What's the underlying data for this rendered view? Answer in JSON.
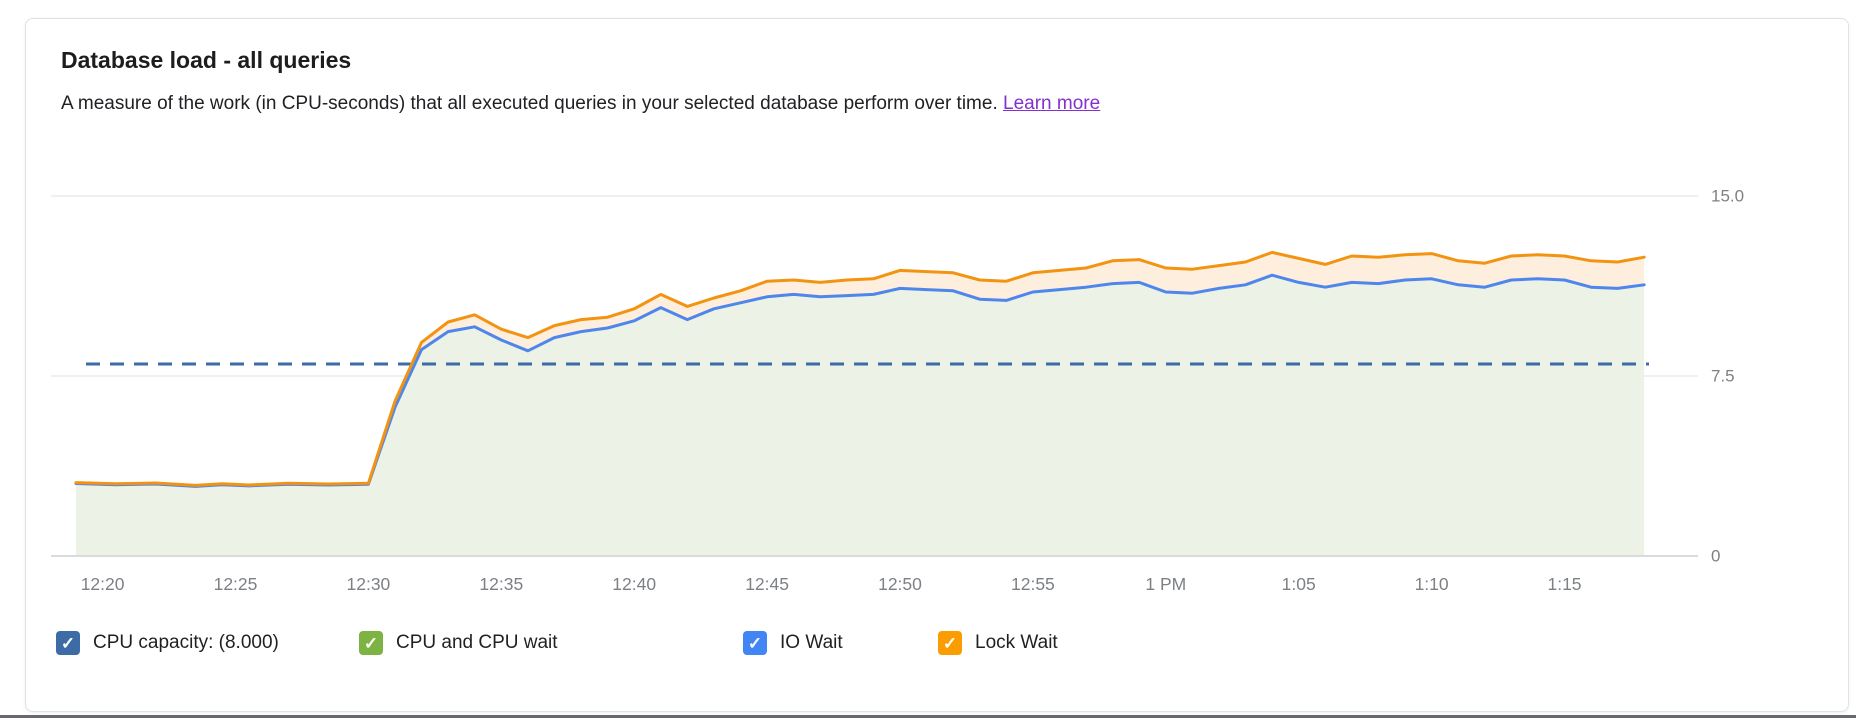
{
  "card": {
    "title": "Database load - all queries",
    "subtitle": "A measure of the work (in CPU-seconds) that all executed queries in your selected database perform over time.",
    "learn_more_label": "Learn more",
    "link_color": "#8430ce"
  },
  "chart_data": {
    "type": "area",
    "title": "Database load - all queries",
    "ylabel": "CPU-seconds",
    "ylim": [
      0,
      15
    ],
    "grid": "horizontal-only",
    "legend_position": "bottom",
    "y_ticks": [
      {
        "value": 15,
        "label": "15.0"
      },
      {
        "value": 7.5,
        "label": "7.5"
      },
      {
        "value": 0,
        "label": "0"
      }
    ],
    "x_tick_labels": [
      "12:20",
      "12:25",
      "12:30",
      "12:35",
      "12:40",
      "12:45",
      "12:50",
      "12:55",
      "1 PM",
      "1:05",
      "1:10",
      "1:15"
    ],
    "x_tick_interval_minutes": 5,
    "series_start_time": "12:19",
    "series_end_time": "1:18",
    "t_minutes": [
      0,
      1.5,
      3,
      4.5,
      5.5,
      6.5,
      8,
      9.5,
      11,
      12,
      13,
      14,
      15,
      16,
      17,
      18,
      19,
      20,
      21,
      22,
      23,
      24,
      25,
      26,
      27,
      28,
      29,
      30,
      31,
      32,
      33,
      34,
      35,
      36,
      37,
      38,
      39,
      40,
      41,
      42,
      43,
      44,
      45,
      46,
      47,
      48,
      49,
      50,
      51,
      52,
      53,
      54,
      55,
      56,
      57,
      58,
      59
    ],
    "capacity": {
      "name": "CPU capacity",
      "value": 8.0,
      "style": "dashed",
      "color": "#3d6ba5"
    },
    "series": [
      {
        "name": "CPU and CPU wait",
        "type": "stacked-area",
        "fill": "#edf2e6",
        "note": "light green band filling from 0 up to the blue IO Wait line",
        "checkbox_color": "#7cb342"
      },
      {
        "name": "IO Wait",
        "type": "line-stack-top",
        "line_color": "#4e86ec",
        "checkbox_color": "#4285f4",
        "values": [
          3.02,
          2.97,
          3.0,
          2.9,
          2.97,
          2.92,
          2.99,
          2.96,
          2.99,
          6.2,
          8.6,
          9.35,
          9.55,
          9.0,
          8.55,
          9.1,
          9.35,
          9.5,
          9.8,
          10.35,
          9.85,
          10.3,
          10.55,
          10.8,
          10.9,
          10.8,
          10.85,
          10.9,
          11.15,
          11.1,
          11.05,
          10.7,
          10.65,
          11.0,
          11.1,
          11.2,
          11.35,
          11.4,
          11.0,
          10.95,
          11.15,
          11.3,
          11.7,
          11.4,
          11.2,
          11.4,
          11.35,
          11.5,
          11.55,
          11.3,
          11.2,
          11.5,
          11.55,
          11.5,
          11.2,
          11.15,
          11.3
        ]
      },
      {
        "name": "Lock Wait",
        "type": "line-stack-top",
        "line_color": "#f29412",
        "fill_between_down_to_blue": "#fdeedd",
        "checkbox_color": "#fb9c00",
        "values": [
          3.06,
          3.01,
          3.04,
          2.94,
          3.01,
          2.96,
          3.03,
          3.0,
          3.03,
          6.45,
          8.9,
          9.75,
          10.05,
          9.45,
          9.1,
          9.6,
          9.85,
          9.95,
          10.3,
          10.9,
          10.4,
          10.75,
          11.05,
          11.45,
          11.5,
          11.4,
          11.5,
          11.55,
          11.9,
          11.85,
          11.8,
          11.5,
          11.45,
          11.8,
          11.9,
          12.0,
          12.3,
          12.35,
          12.0,
          11.95,
          12.1,
          12.25,
          12.65,
          12.4,
          12.15,
          12.5,
          12.45,
          12.55,
          12.6,
          12.3,
          12.2,
          12.5,
          12.55,
          12.5,
          12.3,
          12.25,
          12.45
        ]
      }
    ]
  },
  "legend": {
    "items": [
      {
        "label": "CPU capacity: (8.000)",
        "color": "#3d6ba5",
        "checked": true
      },
      {
        "label": "CPU and CPU wait",
        "color": "#7cb342",
        "checked": true
      },
      {
        "label": "IO Wait",
        "color": "#4285f4",
        "checked": true
      },
      {
        "label": "Lock Wait",
        "color": "#fb9c00",
        "checked": true
      }
    ],
    "check_glyph": "✓"
  }
}
